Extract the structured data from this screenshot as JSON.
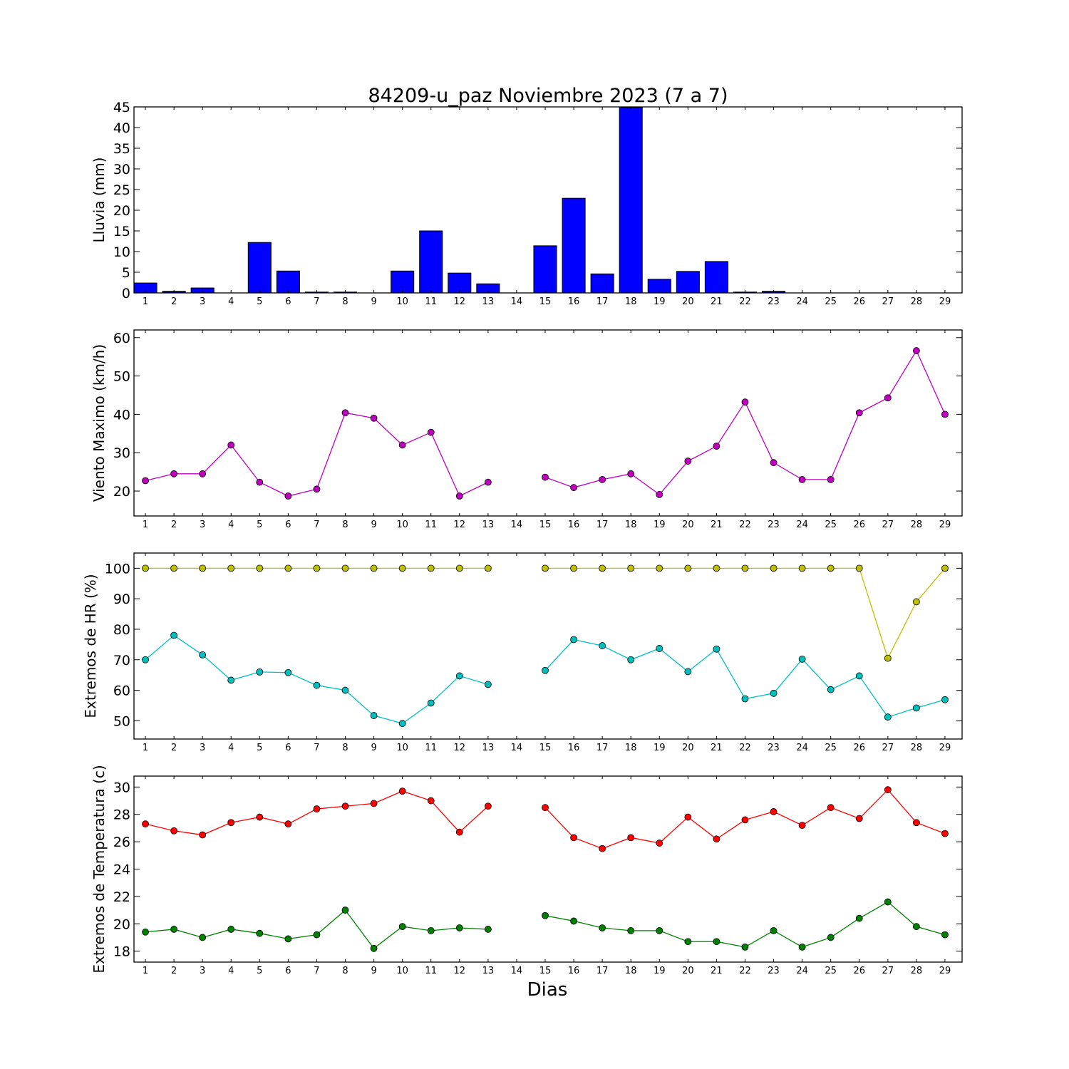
{
  "title": "84209-u_paz Noviembre 2023  (7 a 7)",
  "xlabel": "Dias",
  "chart_data": [
    {
      "type": "bar",
      "ylabel": "Lluvia (mm)",
      "ylim": [
        0,
        45
      ],
      "yticks": [
        0,
        5,
        10,
        15,
        20,
        25,
        30,
        35,
        40,
        45
      ],
      "x": [
        1,
        2,
        3,
        4,
        5,
        6,
        7,
        8,
        9,
        10,
        11,
        12,
        13,
        14,
        15,
        16,
        17,
        18,
        19,
        20,
        21,
        22,
        23,
        24,
        25,
        26,
        27,
        28,
        29
      ],
      "series": [
        {
          "color": "#0000ff",
          "values": [
            2.4,
            0.4,
            1.2,
            0.0,
            12.2,
            5.3,
            0.2,
            0.2,
            0.0,
            5.3,
            15.0,
            4.8,
            2.2,
            null,
            11.4,
            22.9,
            4.6,
            44.9,
            3.3,
            5.2,
            7.6,
            0.2,
            0.4,
            0.0,
            0.0,
            0.0,
            0.0,
            0.0,
            0.0
          ]
        }
      ]
    },
    {
      "type": "line",
      "ylabel": "Viento Maximo (km/h)",
      "ylim": [
        13.5,
        62
      ],
      "yticks": [
        20,
        30,
        40,
        50,
        60
      ],
      "x": [
        1,
        2,
        3,
        4,
        5,
        6,
        7,
        8,
        9,
        10,
        11,
        12,
        13,
        14,
        15,
        16,
        17,
        18,
        19,
        20,
        21,
        22,
        23,
        24,
        25,
        26,
        27,
        28,
        29
      ],
      "series": [
        {
          "color": "#bf00bf",
          "values": [
            22.7,
            24.5,
            24.5,
            32.0,
            22.3,
            18.7,
            20.5,
            40.4,
            39.0,
            32.0,
            35.3,
            18.7,
            22.3,
            null,
            23.6,
            20.9,
            23.0,
            24.5,
            19.1,
            27.8,
            31.7,
            43.2,
            27.4,
            23.0,
            23.0,
            40.4,
            44.3,
            56.6,
            40.0
          ]
        }
      ]
    },
    {
      "type": "line",
      "ylabel": "Extremos de HR (%)",
      "ylim": [
        44,
        105
      ],
      "yticks": [
        50,
        60,
        70,
        80,
        90,
        100
      ],
      "x": [
        1,
        2,
        3,
        4,
        5,
        6,
        7,
        8,
        9,
        10,
        11,
        12,
        13,
        14,
        15,
        16,
        17,
        18,
        19,
        20,
        21,
        22,
        23,
        24,
        25,
        26,
        27,
        28,
        29
      ],
      "series": [
        {
          "color": "#bfbf00",
          "values": [
            100,
            100,
            100,
            100,
            100,
            100,
            100,
            100,
            100,
            100,
            100,
            100,
            100,
            null,
            100,
            100,
            100,
            100,
            100,
            100,
            100,
            100,
            100,
            100,
            100,
            100,
            70.5,
            89,
            100
          ]
        },
        {
          "color": "#00bfbf",
          "values": [
            70,
            78,
            71.6,
            63.3,
            66,
            65.8,
            61.6,
            60,
            51.7,
            49.1,
            55.8,
            64.7,
            61.9,
            null,
            66.5,
            76.6,
            74.6,
            70,
            73.7,
            66.1,
            73.5,
            57.2,
            59,
            70.2,
            60.2,
            64.7,
            51.2,
            54.2,
            56.9
          ]
        }
      ]
    },
    {
      "type": "line",
      "ylabel": "Extremos de Temperatura (c)",
      "ylim": [
        17.2,
        30.8
      ],
      "yticks": [
        18,
        20,
        22,
        24,
        26,
        28,
        30
      ],
      "x": [
        1,
        2,
        3,
        4,
        5,
        6,
        7,
        8,
        9,
        10,
        11,
        12,
        13,
        14,
        15,
        16,
        17,
        18,
        19,
        20,
        21,
        22,
        23,
        24,
        25,
        26,
        27,
        28,
        29
      ],
      "series": [
        {
          "color": "#ff0000",
          "values": [
            27.3,
            26.8,
            26.5,
            27.4,
            27.8,
            27.3,
            28.4,
            28.6,
            28.8,
            29.7,
            29.0,
            26.7,
            28.6,
            null,
            28.5,
            26.3,
            25.5,
            26.3,
            25.9,
            27.8,
            26.2,
            27.6,
            28.2,
            27.2,
            28.5,
            27.7,
            29.8,
            27.4,
            26.6
          ]
        },
        {
          "color": "#008000",
          "values": [
            19.4,
            19.6,
            19.0,
            19.6,
            19.3,
            18.9,
            19.2,
            21.0,
            18.2,
            19.8,
            19.5,
            19.7,
            19.6,
            null,
            20.6,
            20.2,
            19.7,
            19.5,
            19.5,
            18.7,
            18.7,
            18.3,
            19.5,
            18.3,
            19.0,
            20.4,
            21.6,
            19.8,
            19.2
          ]
        }
      ]
    }
  ]
}
